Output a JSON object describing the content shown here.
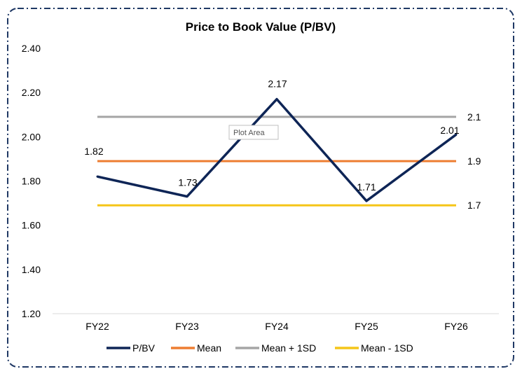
{
  "chart_data": {
    "type": "line",
    "title": "Price to Book Value (P/BV)",
    "categories": [
      "FY22",
      "FY23",
      "FY24",
      "FY25",
      "FY26"
    ],
    "ylim": [
      1.2,
      2.4
    ],
    "yticks": [
      "1.20",
      "1.40",
      "1.60",
      "1.80",
      "2.00",
      "2.20",
      "2.40"
    ],
    "grid": false,
    "legend_position": "bottom",
    "series": [
      {
        "name": "P/BV",
        "values": [
          1.82,
          1.73,
          2.17,
          1.71,
          2.01
        ],
        "labels": [
          "1.82",
          "1.73",
          "2.17",
          "1.71",
          "2.01"
        ],
        "color": "#0e2556"
      },
      {
        "name": "Mean",
        "values": [
          1.89,
          1.89,
          1.89,
          1.89,
          1.89
        ],
        "end_label": "1.9",
        "color": "#ed7d31"
      },
      {
        "name": "Mean + 1SD",
        "values": [
          2.09,
          2.09,
          2.09,
          2.09,
          2.09
        ],
        "end_label": "2.1",
        "color": "#a5a5a5"
      },
      {
        "name": "Mean - 1SD",
        "values": [
          1.69,
          1.69,
          1.69,
          1.69,
          1.69
        ],
        "end_label": "1.7",
        "color": "#f5c518"
      }
    ]
  },
  "tooltip": {
    "text": "Plot Area"
  },
  "frame_color": "#1f3864"
}
